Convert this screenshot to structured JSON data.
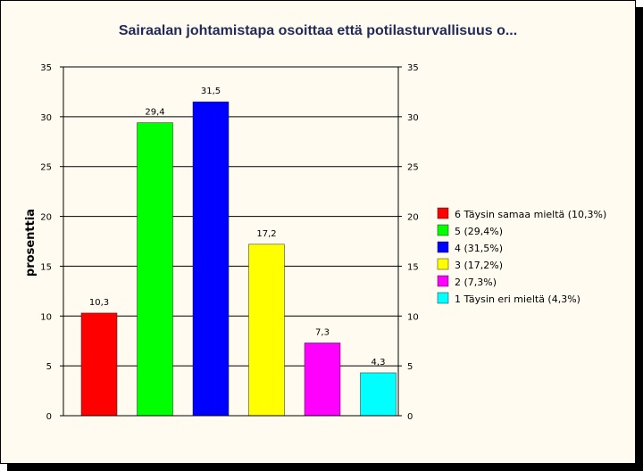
{
  "chart_data": {
    "type": "bar",
    "title": "Sairaalan johtamistapa osoittaa että potilasturvallisuus o...",
    "xlabel": "",
    "ylabel": "prosenttia",
    "ylim": [
      0,
      35
    ],
    "yticks": [
      0,
      5,
      10,
      15,
      20,
      25,
      30,
      35
    ],
    "grid": true,
    "legend_position": "right",
    "categories": [
      "6 Täysin samaa mieltä",
      "5",
      "4",
      "3",
      "2",
      "1 Täysin eri mieltä"
    ],
    "values": [
      10.3,
      29.4,
      31.5,
      17.2,
      7.3,
      4.3
    ],
    "data_labels": [
      "10,3",
      "29,4",
      "31,5",
      "17,2",
      "7,3",
      "4,3"
    ],
    "colors": [
      "#ff0000",
      "#00ff00",
      "#0000ff",
      "#ffff00",
      "#ff00ff",
      "#00ffff"
    ],
    "legend": [
      "6 Täysin samaa mieltä  (10,3%)",
      "5  (29,4%)",
      "4  (31,5%)",
      "3  (17,2%)",
      "2  (7,3%)",
      "1 Täysin eri mieltä (4,3%)"
    ]
  }
}
